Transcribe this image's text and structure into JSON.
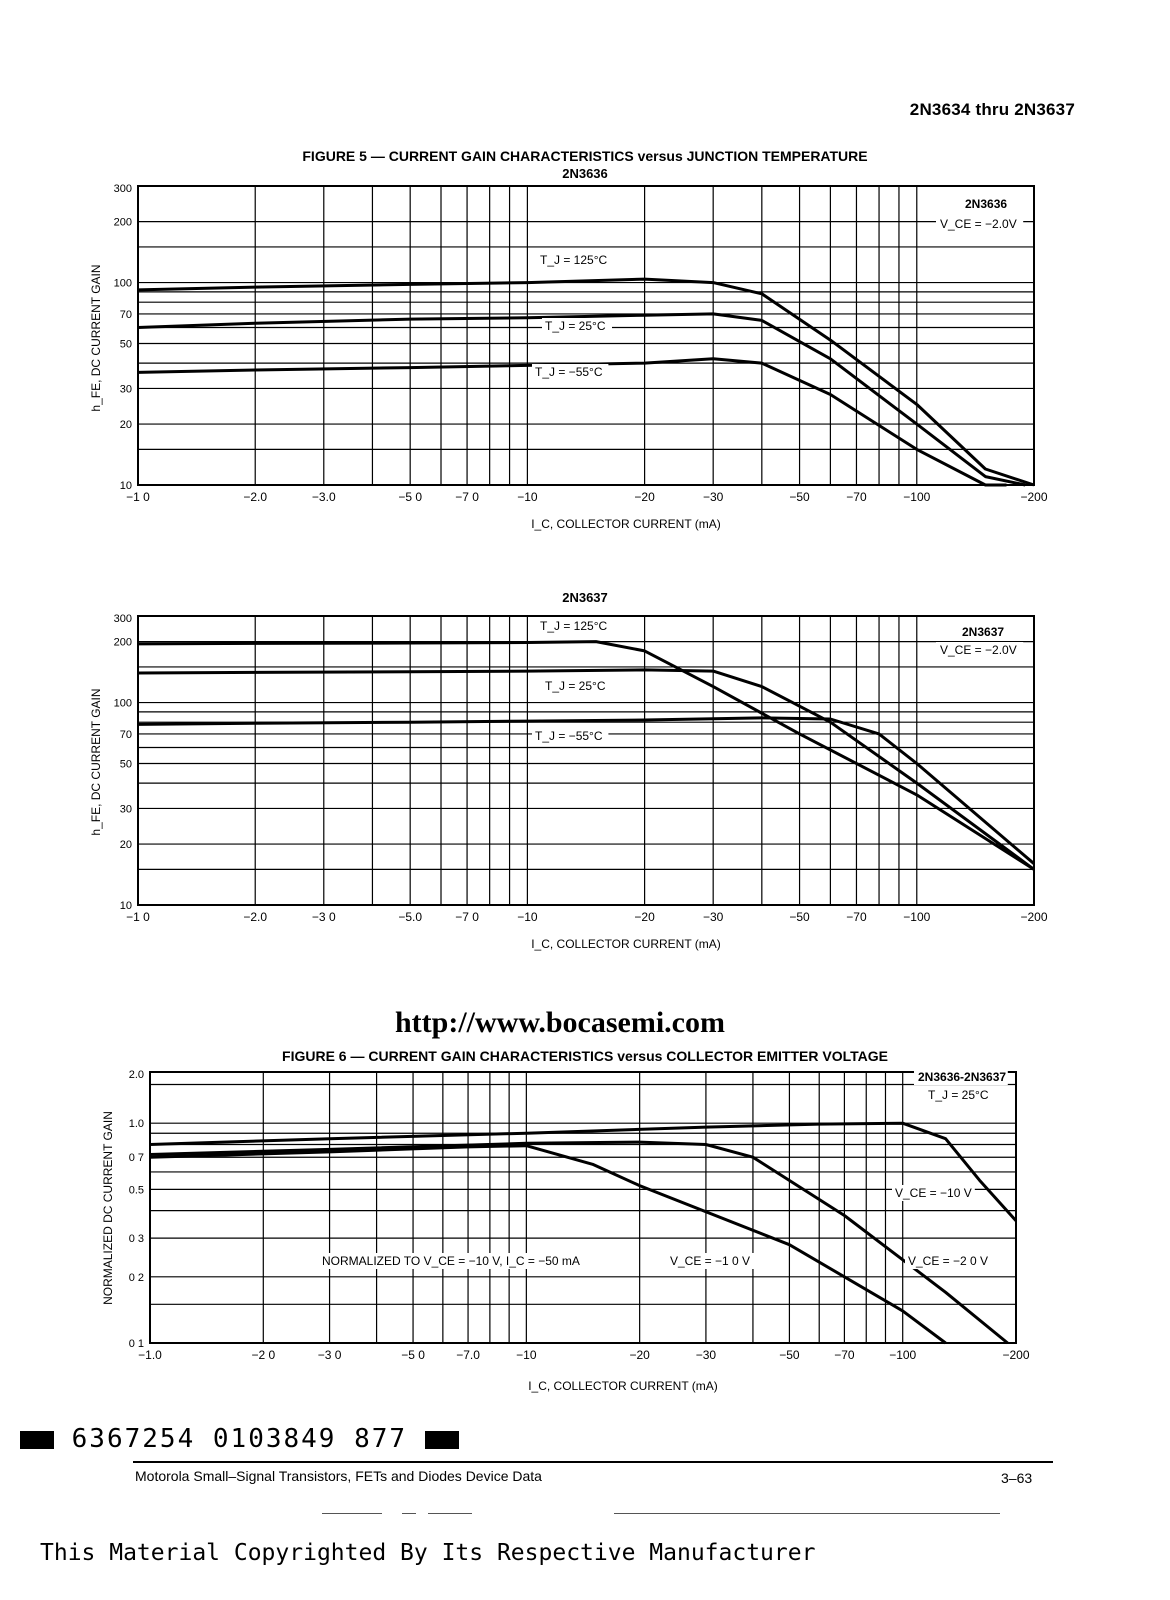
{
  "page": {
    "header": "2N3634 thru 2N3637",
    "url": "http://www.bocasemi.com",
    "barcode": "6367254 0103849 877",
    "footer_left": "Motorola Small–Signal Transistors, FETs and Diodes Device Data",
    "footer_right": "3–63",
    "copyright": "This Material Copyrighted By Its Respective Manufacturer"
  },
  "figure5": {
    "title": "FIGURE 5 — CURRENT GAIN CHARACTERISTICS versus JUNCTION TEMPERATURE",
    "subtitle_top": "2N3636",
    "subtitle_bottom": "2N3637"
  },
  "figure6": {
    "title": "FIGURE 6 — CURRENT GAIN CHARACTERISTICS versus COLLECTOR EMITTER VOLTAGE"
  },
  "chart_data": [
    {
      "type": "line",
      "device": "2N3636",
      "xlabel": "I_C, COLLECTOR CURRENT (mA)",
      "ylabel": "h_FE, DC CURRENT GAIN",
      "xscale": "log",
      "yscale": "log",
      "xlim": [
        1.0,
        200
      ],
      "ylim": [
        10,
        300
      ],
      "x_ticks": [
        "−1 0",
        "−2.0",
        "−3.0",
        "−5 0",
        "−7 0",
        "−10",
        "−20",
        "−30",
        "−50",
        "−70",
        "−100",
        "−200"
      ],
      "x_tick_values": [
        1,
        2,
        3,
        5,
        7,
        10,
        20,
        30,
        50,
        70,
        100,
        200
      ],
      "y_ticks": [
        "10",
        "20",
        "30",
        "50",
        "70",
        "100",
        "200",
        "300"
      ],
      "y_tick_values": [
        10,
        20,
        30,
        50,
        70,
        100,
        200,
        300
      ],
      "grid": true,
      "annotation": [
        "2N3636",
        "V_CE = −2.0V"
      ],
      "series": [
        {
          "name": "T_J = 125°C",
          "x": [
            1,
            2,
            5,
            10,
            20,
            30,
            40,
            60,
            100,
            150,
            200
          ],
          "y": [
            92,
            95,
            98,
            100,
            104,
            100,
            88,
            52,
            25,
            12,
            10
          ]
        },
        {
          "name": "T_J = 25°C",
          "x": [
            1,
            2,
            5,
            10,
            20,
            30,
            40,
            60,
            100,
            150,
            190
          ],
          "y": [
            60,
            63,
            66,
            67,
            69,
            70,
            65,
            42,
            20,
            11,
            10
          ]
        },
        {
          "name": "T_J = −55°C",
          "x": [
            1,
            2,
            5,
            10,
            20,
            30,
            40,
            60,
            100,
            150,
            170
          ],
          "y": [
            36,
            37,
            38,
            39,
            40,
            42,
            40,
            28,
            15,
            10,
            10
          ]
        }
      ]
    },
    {
      "type": "line",
      "device": "2N3637",
      "xlabel": "I_C, COLLECTOR CURRENT (mA)",
      "ylabel": "h_FE, DC CURRENT GAIN",
      "xscale": "log",
      "yscale": "log",
      "xlim": [
        1.0,
        200
      ],
      "ylim": [
        10,
        300
      ],
      "x_ticks": [
        "−1 0",
        "−2.0",
        "−3 0",
        "−5.0",
        "−7 0",
        "−10",
        "−20",
        "−30",
        "−50",
        "−70",
        "−100",
        "−200"
      ],
      "x_tick_values": [
        1,
        2,
        3,
        5,
        7,
        10,
        20,
        30,
        50,
        70,
        100,
        200
      ],
      "y_ticks": [
        "10",
        "20",
        "30",
        "50",
        "70",
        "100",
        "200",
        "300"
      ],
      "y_tick_values": [
        10,
        20,
        30,
        50,
        70,
        100,
        200,
        300
      ],
      "grid": true,
      "annotation": [
        "2N3637",
        "V_CE = −2.0V"
      ],
      "series": [
        {
          "name": "T_J = 125°C",
          "x": [
            1,
            2,
            5,
            10,
            15,
            20,
            30,
            50,
            100,
            200
          ],
          "y": [
            195,
            196,
            197,
            198,
            200,
            180,
            120,
            70,
            35,
            15
          ]
        },
        {
          "name": "T_J = 25°C",
          "x": [
            1,
            2,
            5,
            10,
            20,
            30,
            40,
            60,
            100,
            200
          ],
          "y": [
            140,
            141,
            142,
            143,
            145,
            143,
            120,
            80,
            40,
            15
          ]
        },
        {
          "name": "T_J = −55°C",
          "x": [
            1,
            2,
            5,
            10,
            20,
            40,
            60,
            80,
            100,
            200
          ],
          "y": [
            78,
            79,
            80,
            81,
            82,
            84,
            83,
            70,
            50,
            16
          ]
        }
      ]
    },
    {
      "type": "line",
      "xlabel": "I_C, COLLECTOR CURRENT (mA)",
      "ylabel": "NORMALIZED DC CURRENT GAIN",
      "xscale": "log",
      "yscale": "log",
      "xlim": [
        1.0,
        200
      ],
      "ylim": [
        0.1,
        2.0
      ],
      "x_ticks": [
        "−1.0",
        "−2 0",
        "−3 0",
        "−5 0",
        "−7.0",
        "−10",
        "−20",
        "−30",
        "−50",
        "−70",
        "−100",
        "−200"
      ],
      "x_tick_values": [
        1,
        2,
        3,
        5,
        7,
        10,
        20,
        30,
        50,
        70,
        100,
        200
      ],
      "y_ticks": [
        "0 1",
        "0 2",
        "0 3",
        "0.5",
        "0 7",
        "1.0",
        "2.0"
      ],
      "y_tick_values": [
        0.1,
        0.2,
        0.3,
        0.5,
        0.7,
        1.0,
        2.0
      ],
      "grid": true,
      "annotation": [
        "2N3636-2N3637",
        "T_J = 25°C"
      ],
      "note": "NORMALIZED TO V_CE = −10 V, I_C = −50 mA",
      "series": [
        {
          "name": "V_CE = −10 V",
          "x": [
            1,
            3,
            10,
            30,
            60,
            100,
            130,
            160,
            200
          ],
          "y": [
            0.8,
            0.85,
            0.9,
            0.96,
            0.99,
            1.0,
            0.85,
            0.55,
            0.36
          ]
        },
        {
          "name": "V_CE = −1 0 V",
          "x": [
            1,
            3,
            7,
            10,
            15,
            20,
            50,
            100,
            130
          ],
          "y": [
            0.7,
            0.74,
            0.78,
            0.79,
            0.65,
            0.52,
            0.28,
            0.14,
            0.1
          ]
        },
        {
          "name": "V_CE = −2 0 V",
          "x": [
            1,
            3,
            10,
            20,
            30,
            40,
            70,
            130,
            190
          ],
          "y": [
            0.72,
            0.76,
            0.81,
            0.82,
            0.8,
            0.7,
            0.38,
            0.17,
            0.1
          ]
        }
      ]
    }
  ],
  "labels": {
    "c1": {
      "series": [
        "T_J = 125°C",
        "T_J = 25°C",
        "T_J = −55°C"
      ],
      "box": [
        "2N3636",
        "V_CE = −2.0V"
      ]
    },
    "c2": {
      "series": [
        "T_J = 125°C",
        "T_J = 25°C",
        "T_J = −55°C"
      ],
      "box": [
        "2N3637",
        "V_CE = −2.0V"
      ]
    },
    "c3": {
      "series": [
        "V_CE = −10 V",
        "V_CE = −1 0 V",
        "V_CE = −2 0 V"
      ],
      "box": [
        "2N3636-2N3637",
        "T_J = 25°C"
      ],
      "note": "NORMALIZED TO V_CE = −10 V, I_C = −50 mA"
    }
  }
}
